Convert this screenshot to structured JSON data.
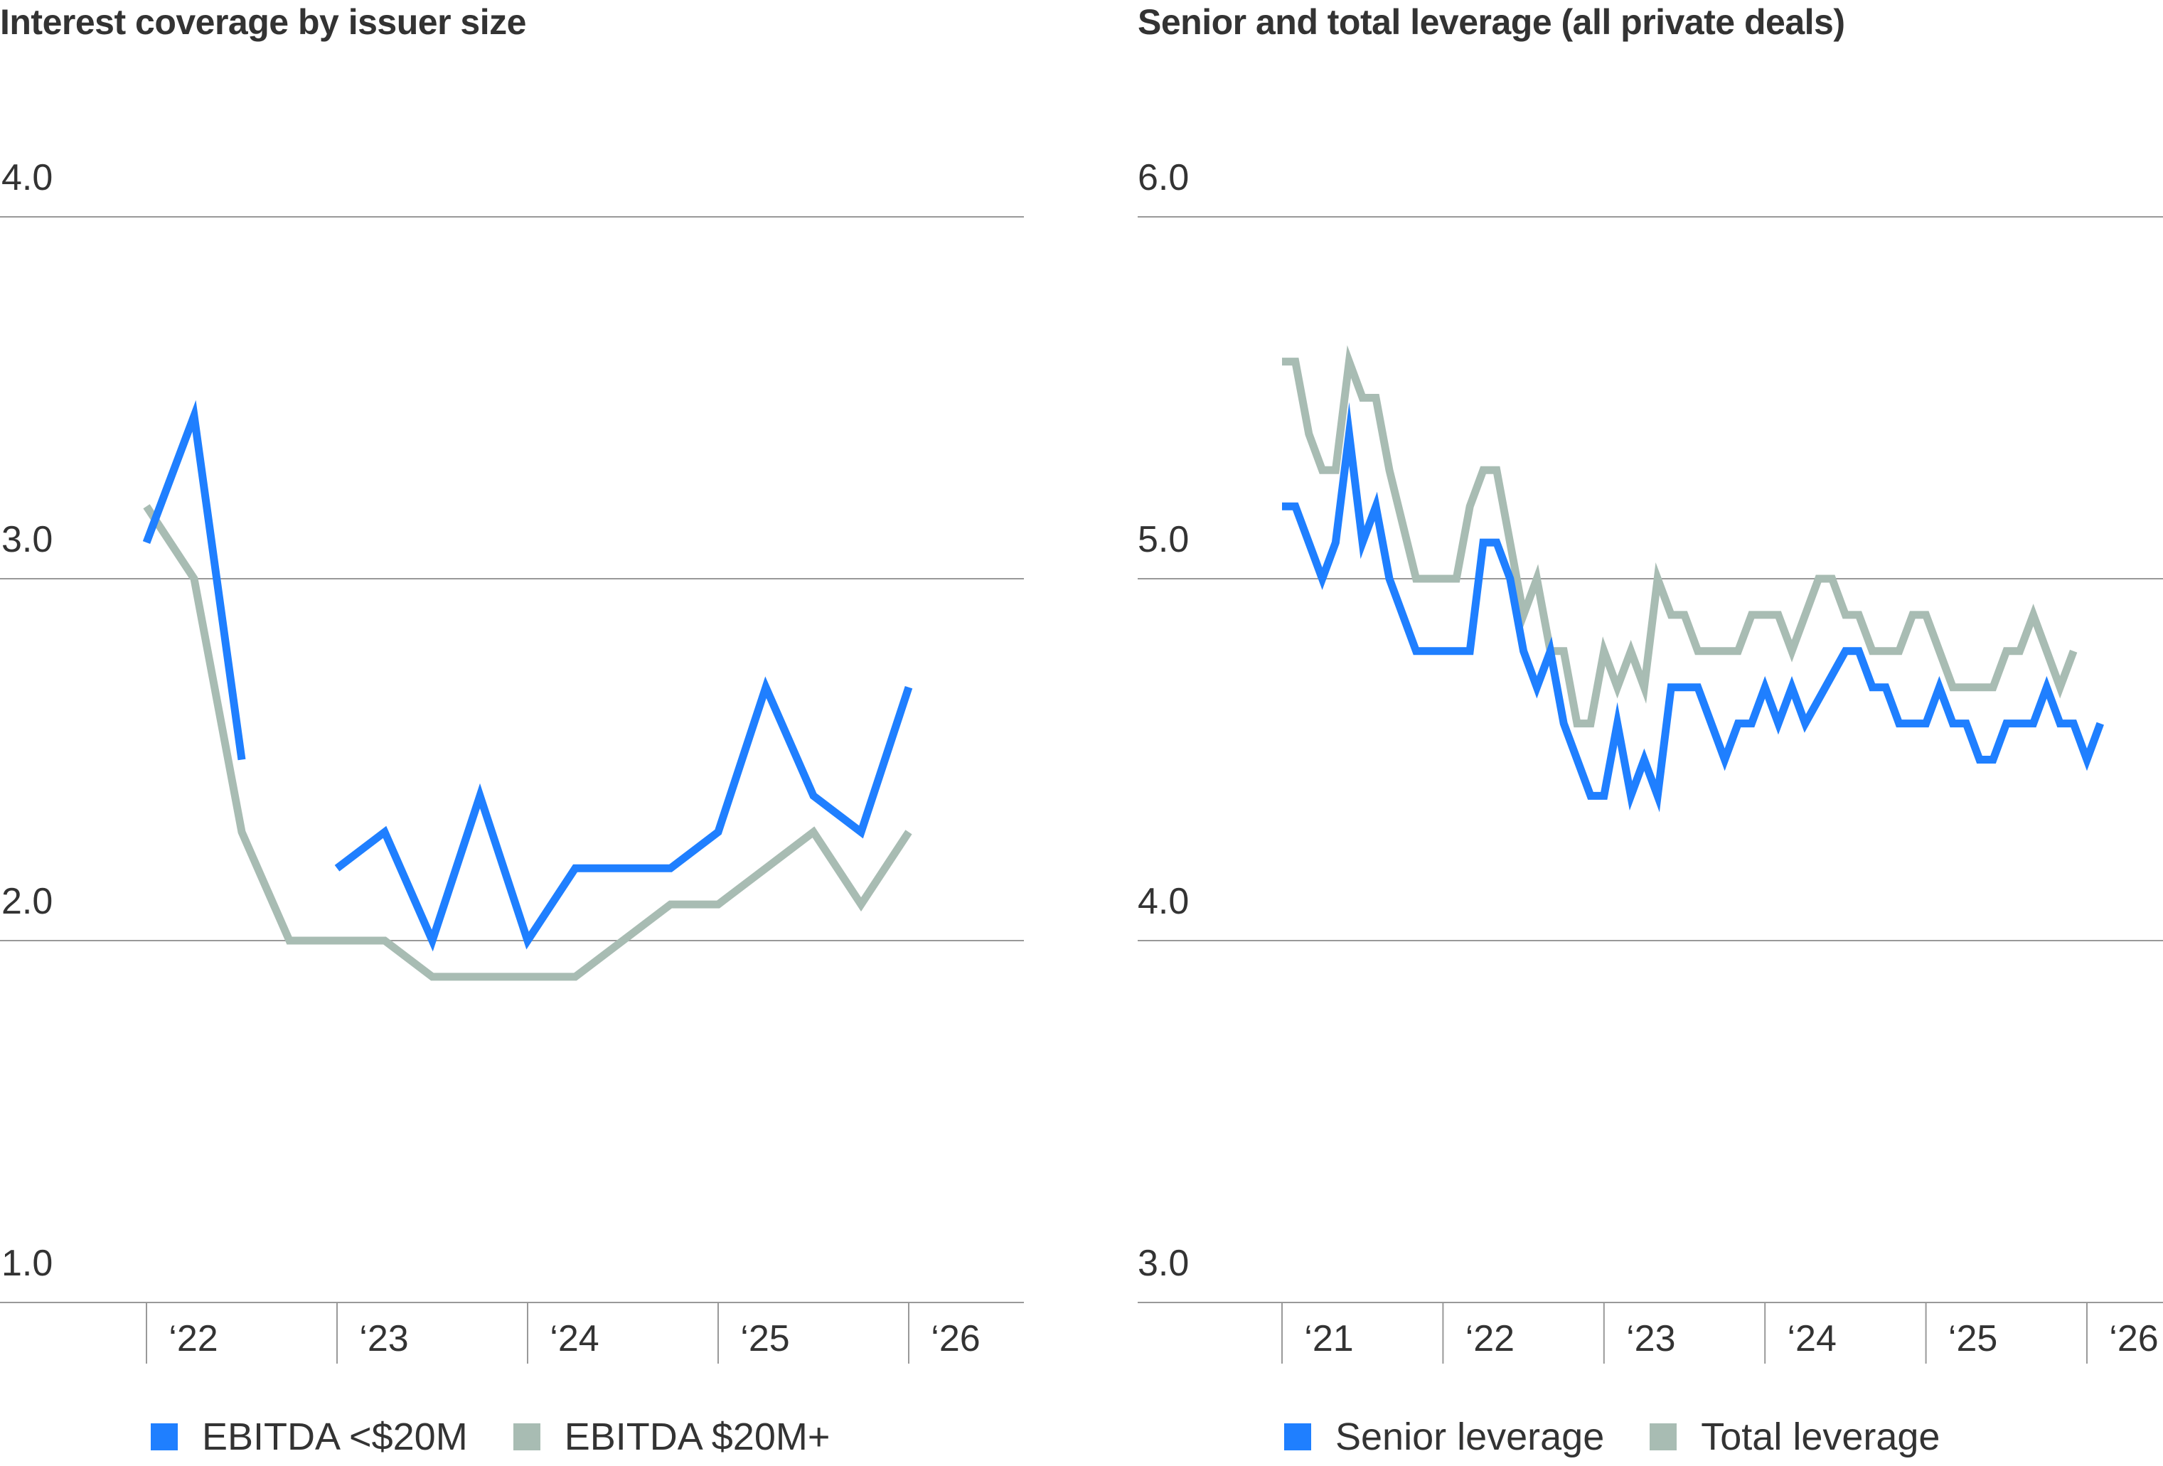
{
  "colors": {
    "blue": "#1f7fff",
    "gray": "#a8bcb3",
    "grid": "#999999",
    "text": "#333333"
  },
  "charts": [
    {
      "title": "Interest coverage by issuer size",
      "yticks": [
        "4.0",
        "3.0",
        "2.0",
        "1.0"
      ],
      "xticks": [
        "‘22",
        "‘23",
        "‘24",
        "‘25",
        "‘26"
      ],
      "legend": [
        "EBITDA <$20M",
        "EBITDA $20M+"
      ]
    },
    {
      "title": "Senior and total leverage (all private deals)",
      "yticks": [
        "6.0",
        "5.0",
        "4.0",
        "3.0"
      ],
      "xticks": [
        "‘21",
        "‘22",
        "‘23",
        "‘24",
        "‘25",
        "‘26"
      ],
      "legend": [
        "Senior leverage",
        "Total leverage"
      ]
    }
  ],
  "chart_data": [
    {
      "type": "line",
      "title": "Interest coverage by issuer size",
      "ylim": [
        1.0,
        4.0
      ],
      "yticks": [
        4.0,
        3.0,
        2.0,
        1.0
      ],
      "xlim": [
        2021.7875,
        2026.6
      ],
      "xticks": [
        {
          "label": "‘22",
          "x": 2022
        },
        {
          "label": "‘23",
          "x": 2023
        },
        {
          "label": "‘24",
          "x": 2024
        },
        {
          "label": "‘25",
          "x": 2025
        },
        {
          "label": "‘26",
          "x": 2026
        }
      ],
      "grid": "horizontal",
      "legend_position": "bottom",
      "series": [
        {
          "name": "EBITDA <$20M",
          "color": "#1f7fff",
          "segments": [
            [
              [
                2022.0,
                3.1
              ],
              [
                2022.25,
                3.45
              ],
              [
                2022.5,
                2.5
              ]
            ],
            [
              [
                2023.0,
                2.2
              ],
              [
                2023.25,
                2.3
              ],
              [
                2023.5,
                2.0
              ],
              [
                2023.75,
                2.4
              ],
              [
                2024.0,
                2.0
              ],
              [
                2024.25,
                2.2
              ],
              [
                2024.5,
                2.2
              ],
              [
                2024.75,
                2.2
              ],
              [
                2025.0,
                2.3
              ],
              [
                2025.25,
                2.7
              ],
              [
                2025.5,
                2.4
              ],
              [
                2025.75,
                2.3
              ],
              [
                2026.0,
                2.7
              ]
            ]
          ]
        },
        {
          "name": "EBITDA $20M+",
          "color": "#a8bcb3",
          "segments": [
            [
              [
                2022.0,
                3.2
              ],
              [
                2022.25,
                3.0
              ],
              [
                2022.5,
                2.3
              ],
              [
                2022.75,
                2.0
              ],
              [
                2023.0,
                2.0
              ],
              [
                2023.25,
                2.0
              ],
              [
                2023.5,
                1.9
              ],
              [
                2023.75,
                1.9
              ],
              [
                2024.0,
                1.9
              ],
              [
                2024.25,
                1.9
              ],
              [
                2024.5,
                2.0
              ],
              [
                2024.75,
                2.1
              ],
              [
                2025.0,
                2.1
              ],
              [
                2025.25,
                2.2
              ],
              [
                2025.5,
                2.3
              ],
              [
                2025.75,
                2.1
              ],
              [
                2026.0,
                2.3
              ]
            ]
          ]
        }
      ]
    },
    {
      "type": "line",
      "title": "Senior and total leverage (all private deals)",
      "ylim": [
        3.0,
        6.0
      ],
      "yticks": [
        6.0,
        5.0,
        4.0,
        3.0
      ],
      "xlim": [
        2020.9,
        2026.5
      ],
      "xticks": [
        {
          "label": "‘21",
          "x": 2021
        },
        {
          "label": "‘22",
          "x": 2022
        },
        {
          "label": "‘23",
          "x": 2023
        },
        {
          "label": "‘24",
          "x": 2024
        },
        {
          "label": "‘25",
          "x": 2025
        },
        {
          "label": "‘26",
          "x": 2026
        }
      ],
      "grid": "horizontal",
      "legend_position": "bottom",
      "series": [
        {
          "name": "Senior leverage",
          "color": "#1f7fff",
          "segments": [
            [
              [
                2021.0,
                5.2
              ],
              [
                2021.083,
                5.2
              ],
              [
                2021.25,
                5.0
              ],
              [
                2021.333,
                5.1
              ],
              [
                2021.417,
                5.4
              ],
              [
                2021.5,
                5.1
              ],
              [
                2021.583,
                5.2
              ],
              [
                2021.667,
                5.0
              ],
              [
                2021.833,
                4.8
              ],
              [
                2022.0,
                4.8
              ],
              [
                2022.167,
                4.8
              ],
              [
                2022.25,
                5.1
              ],
              [
                2022.333,
                5.1
              ],
              [
                2022.417,
                5.0
              ],
              [
                2022.5,
                4.8
              ],
              [
                2022.583,
                4.7
              ],
              [
                2022.667,
                4.8
              ],
              [
                2022.75,
                4.6
              ],
              [
                2022.917,
                4.4
              ],
              [
                2023.0,
                4.4
              ],
              [
                2023.083,
                4.6
              ],
              [
                2023.167,
                4.4
              ],
              [
                2023.25,
                4.5
              ],
              [
                2023.333,
                4.4
              ],
              [
                2023.417,
                4.7
              ],
              [
                2023.583,
                4.7
              ],
              [
                2023.75,
                4.5
              ],
              [
                2023.833,
                4.6
              ],
              [
                2023.917,
                4.6
              ],
              [
                2024.0,
                4.7
              ],
              [
                2024.083,
                4.6
              ],
              [
                2024.167,
                4.7
              ],
              [
                2024.25,
                4.6
              ],
              [
                2024.5,
                4.8
              ],
              [
                2024.583,
                4.8
              ],
              [
                2024.667,
                4.7
              ],
              [
                2024.75,
                4.7
              ],
              [
                2024.833,
                4.6
              ],
              [
                2025.0,
                4.6
              ],
              [
                2025.083,
                4.7
              ],
              [
                2025.167,
                4.6
              ],
              [
                2025.25,
                4.6
              ],
              [
                2025.333,
                4.5
              ],
              [
                2025.417,
                4.5
              ],
              [
                2025.5,
                4.6
              ],
              [
                2025.667,
                4.6
              ],
              [
                2025.75,
                4.7
              ],
              [
                2025.833,
                4.6
              ],
              [
                2025.917,
                4.6
              ],
              [
                2026.0,
                4.5
              ],
              [
                2026.083,
                4.6
              ]
            ]
          ]
        },
        {
          "name": "Total leverage",
          "color": "#a8bcb3",
          "segments": [
            [
              [
                2021.0,
                5.6
              ],
              [
                2021.083,
                5.6
              ],
              [
                2021.167,
                5.4
              ],
              [
                2021.25,
                5.3
              ],
              [
                2021.333,
                5.3
              ],
              [
                2021.417,
                5.6
              ],
              [
                2021.5,
                5.5
              ],
              [
                2021.583,
                5.5
              ],
              [
                2021.667,
                5.3
              ],
              [
                2021.833,
                5.0
              ],
              [
                2022.0,
                5.0
              ],
              [
                2022.083,
                5.0
              ],
              [
                2022.167,
                5.2
              ],
              [
                2022.25,
                5.3
              ],
              [
                2022.333,
                5.3
              ],
              [
                2022.5,
                4.9
              ],
              [
                2022.583,
                5.0
              ],
              [
                2022.667,
                4.8
              ],
              [
                2022.75,
                4.8
              ],
              [
                2022.833,
                4.6
              ],
              [
                2022.917,
                4.6
              ],
              [
                2023.0,
                4.8
              ],
              [
                2023.083,
                4.7
              ],
              [
                2023.167,
                4.8
              ],
              [
                2023.25,
                4.7
              ],
              [
                2023.333,
                5.0
              ],
              [
                2023.417,
                4.9
              ],
              [
                2023.5,
                4.9
              ],
              [
                2023.583,
                4.8
              ],
              [
                2023.833,
                4.8
              ],
              [
                2023.917,
                4.9
              ],
              [
                2024.083,
                4.9
              ],
              [
                2024.167,
                4.8
              ],
              [
                2024.333,
                5.0
              ],
              [
                2024.417,
                5.0
              ],
              [
                2024.5,
                4.9
              ],
              [
                2024.583,
                4.9
              ],
              [
                2024.667,
                4.8
              ],
              [
                2024.833,
                4.8
              ],
              [
                2024.917,
                4.9
              ],
              [
                2025.0,
                4.9
              ],
              [
                2025.167,
                4.7
              ],
              [
                2025.417,
                4.7
              ],
              [
                2025.5,
                4.8
              ],
              [
                2025.583,
                4.8
              ],
              [
                2025.667,
                4.9
              ],
              [
                2025.833,
                4.7
              ],
              [
                2025.917,
                4.8
              ]
            ]
          ]
        }
      ]
    }
  ]
}
